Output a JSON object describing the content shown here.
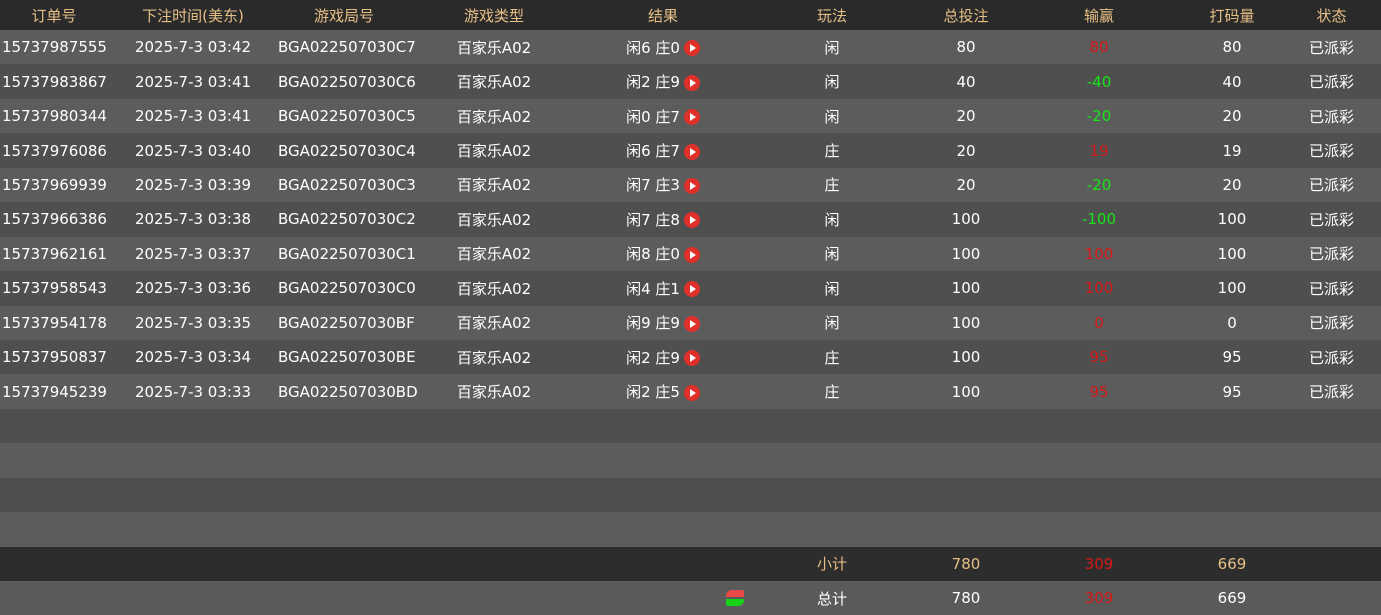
{
  "headers": [
    "订单号",
    "下注时间(美东)",
    "游戏局号",
    "游戏类型",
    "结果",
    "玩法",
    "总投注",
    "输赢",
    "打码量",
    "状态"
  ],
  "rows": [
    {
      "order": "15737987555",
      "time": "2025-7-3 03:42",
      "round": "BGA022507030C7",
      "game": "百家乐A02",
      "result": "闲6 庄0",
      "bet_type": "闲",
      "bet": "80",
      "win": "80",
      "win_sign": "pos",
      "valid": "80",
      "status": "已派彩"
    },
    {
      "order": "15737983867",
      "time": "2025-7-3 03:41",
      "round": "BGA022507030C6",
      "game": "百家乐A02",
      "result": "闲2 庄9",
      "bet_type": "闲",
      "bet": "40",
      "win": "-40",
      "win_sign": "neg",
      "valid": "40",
      "status": "已派彩"
    },
    {
      "order": "15737980344",
      "time": "2025-7-3 03:41",
      "round": "BGA022507030C5",
      "game": "百家乐A02",
      "result": "闲0 庄7",
      "bet_type": "闲",
      "bet": "20",
      "win": "-20",
      "win_sign": "neg",
      "valid": "20",
      "status": "已派彩"
    },
    {
      "order": "15737976086",
      "time": "2025-7-3 03:40",
      "round": "BGA022507030C4",
      "game": "百家乐A02",
      "result": "闲6 庄7",
      "bet_type": "庄",
      "bet": "20",
      "win": "19",
      "win_sign": "pos",
      "valid": "19",
      "status": "已派彩"
    },
    {
      "order": "15737969939",
      "time": "2025-7-3 03:39",
      "round": "BGA022507030C3",
      "game": "百家乐A02",
      "result": "闲7 庄3",
      "bet_type": "庄",
      "bet": "20",
      "win": "-20",
      "win_sign": "neg",
      "valid": "20",
      "status": "已派彩"
    },
    {
      "order": "15737966386",
      "time": "2025-7-3 03:38",
      "round": "BGA022507030C2",
      "game": "百家乐A02",
      "result": "闲7 庄8",
      "bet_type": "闲",
      "bet": "100",
      "win": "-100",
      "win_sign": "neg",
      "valid": "100",
      "status": "已派彩"
    },
    {
      "order": "15737962161",
      "time": "2025-7-3 03:37",
      "round": "BGA022507030C1",
      "game": "百家乐A02",
      "result": "闲8 庄0",
      "bet_type": "闲",
      "bet": "100",
      "win": "100",
      "win_sign": "pos",
      "valid": "100",
      "status": "已派彩"
    },
    {
      "order": "15737958543",
      "time": "2025-7-3 03:36",
      "round": "BGA022507030C0",
      "game": "百家乐A02",
      "result": "闲4 庄1",
      "bet_type": "闲",
      "bet": "100",
      "win": "100",
      "win_sign": "pos",
      "valid": "100",
      "status": "已派彩"
    },
    {
      "order": "15737954178",
      "time": "2025-7-3 03:35",
      "round": "BGA022507030BF",
      "game": "百家乐A02",
      "result": "闲9 庄9",
      "bet_type": "闲",
      "bet": "100",
      "win": "0",
      "win_sign": "pos",
      "valid": "0",
      "status": "已派彩"
    },
    {
      "order": "15737950837",
      "time": "2025-7-3 03:34",
      "round": "BGA022507030BE",
      "game": "百家乐A02",
      "result": "闲2 庄9",
      "bet_type": "庄",
      "bet": "100",
      "win": "95",
      "win_sign": "pos",
      "valid": "95",
      "status": "已派彩"
    },
    {
      "order": "15737945239",
      "time": "2025-7-3 03:33",
      "round": "BGA022507030BD",
      "game": "百家乐A02",
      "result": "闲2 庄5",
      "bet_type": "庄",
      "bet": "100",
      "win": "95",
      "win_sign": "pos",
      "valid": "95",
      "status": "已派彩"
    }
  ],
  "subtotal": {
    "label": "小计",
    "bet": "780",
    "win": "309",
    "valid": "669"
  },
  "total": {
    "label": "总计",
    "bet": "780",
    "win": "309",
    "valid": "669"
  },
  "colors": {
    "header_text": "#e6bf86",
    "win_positive": "#d81818",
    "win_negative": "#17e617"
  },
  "icons": {
    "result_play": "play-icon",
    "total_refresh": "refresh-icon"
  }
}
